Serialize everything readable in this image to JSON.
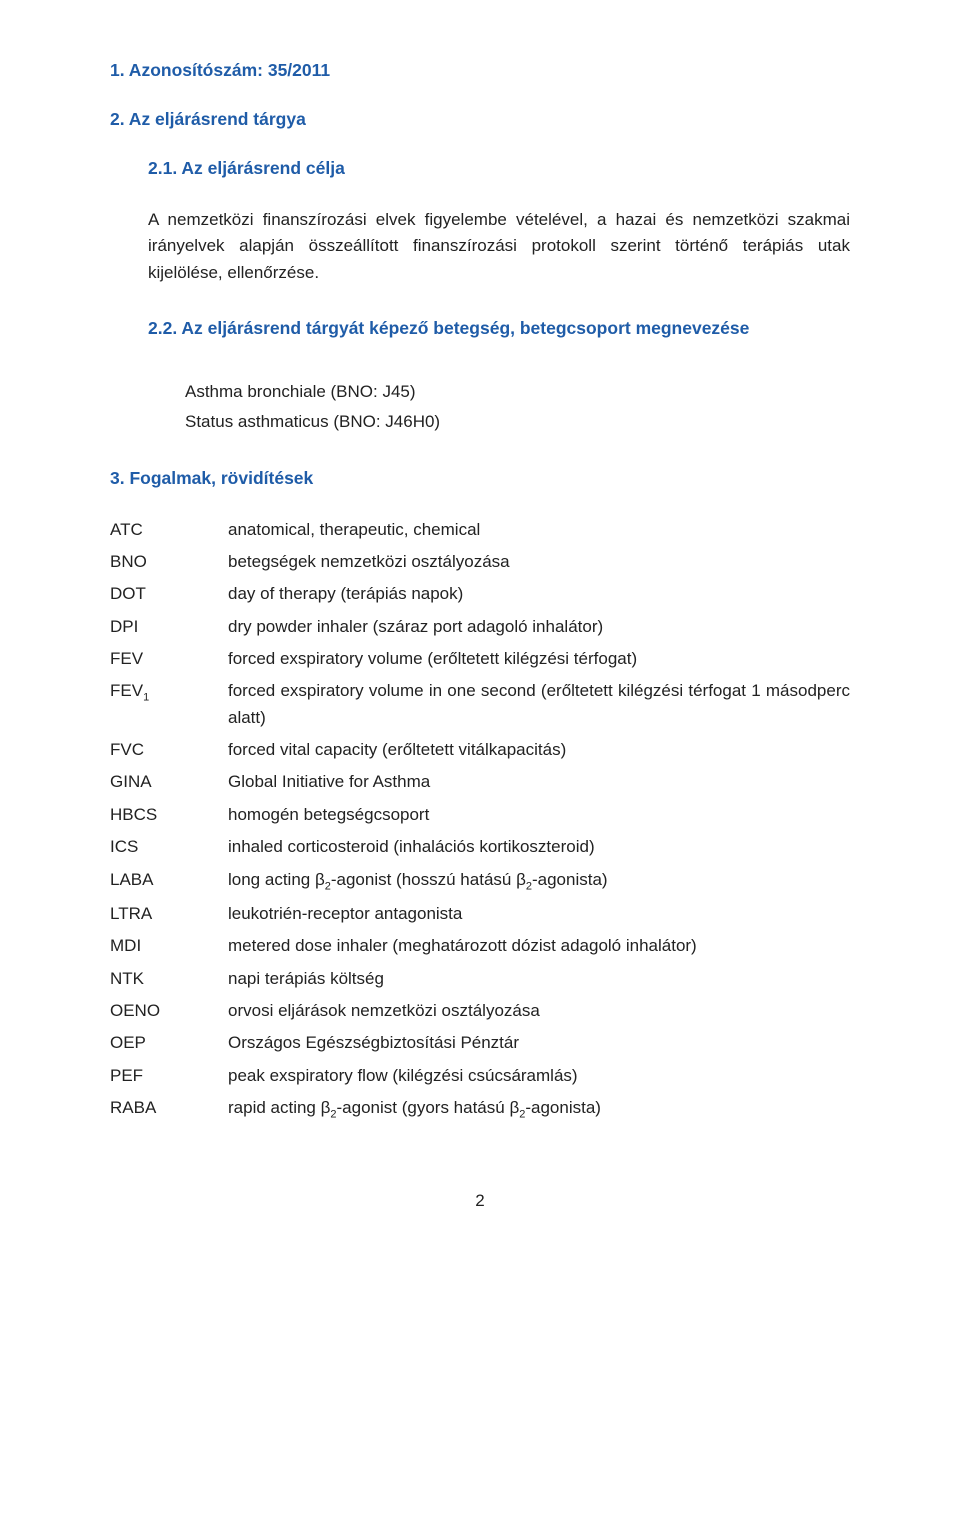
{
  "headings": {
    "h1": "1.   Azonosítószám: 35/2011",
    "h2": "2.   Az eljárásrend tárgya",
    "h21": "2.1.  Az eljárásrend célja",
    "h22": "2.2.  Az eljárásrend tárgyát képező betegség, betegcsoport megnevezése",
    "h3": "3.   Fogalmak, rövidítések"
  },
  "p21": "A nemzetközi finanszírozási elvek figyelembe vételével, a hazai és nemzetközi szakmai irányelvek alapján összeállított finanszírozási protokoll szerint történő terápiás utak kijelölése, ellenőrzése.",
  "list22": {
    "a": "Asthma bronchiale (BNO: J45)",
    "b": "Status asthmaticus (BNO: J46H0)"
  },
  "defs": [
    {
      "term": "ATC",
      "def": "anatomical, therapeutic, chemical"
    },
    {
      "term": "BNO",
      "def": "betegségek nemzetközi osztályozása"
    },
    {
      "term": "DOT",
      "def": "day of therapy (terápiás napok)"
    },
    {
      "term": "DPI",
      "def": "dry powder inhaler (száraz port adagoló inhalátor)"
    },
    {
      "term": "FEV",
      "def": "forced exspiratory volume (erőltetett kilégzési térfogat)"
    },
    {
      "term_html": "FEV<span class=\"sub\">1</span>",
      "def": "forced exspiratory volume in one second (erőltetett kilégzési térfogat 1 másodperc alatt)"
    },
    {
      "term": "FVC",
      "def": "forced vital capacity (erőltetett vitálkapacitás)"
    },
    {
      "term": "GINA",
      "def": "Global Initiative for Asthma"
    },
    {
      "term": "HBCS",
      "def": "homogén betegségcsoport"
    },
    {
      "term": "ICS",
      "def": "inhaled corticosteroid (inhalációs kortikoszteroid)"
    },
    {
      "term": "LABA",
      "def_html": "long acting β<span class=\"sub\">2</span>-agonist (hosszú hatású β<span class=\"sub\">2</span>-agonista)"
    },
    {
      "term": "LTRA",
      "def": "leukotrién-receptor antagonista"
    },
    {
      "term": "MDI",
      "def": "metered dose inhaler (meghatározott dózist adagoló inhalátor)"
    },
    {
      "term": "NTK",
      "def": "napi terápiás költség"
    },
    {
      "term": "OENO",
      "def": "orvosi eljárások nemzetközi osztályozása"
    },
    {
      "term": "OEP",
      "def": "Országos Egészségbiztosítási Pénztár"
    },
    {
      "term": "PEF",
      "def": "peak exspiratory flow (kilégzési csúcsáramlás)"
    },
    {
      "term": "RABA",
      "def_html": "rapid acting β<span class=\"sub\">2</span>-agonist (gyors hatású β<span class=\"sub\">2</span>-agonista)"
    }
  ],
  "page_number": "2",
  "colors": {
    "heading": "#1f5ca8",
    "body": "#222222",
    "background": "#ffffff"
  }
}
